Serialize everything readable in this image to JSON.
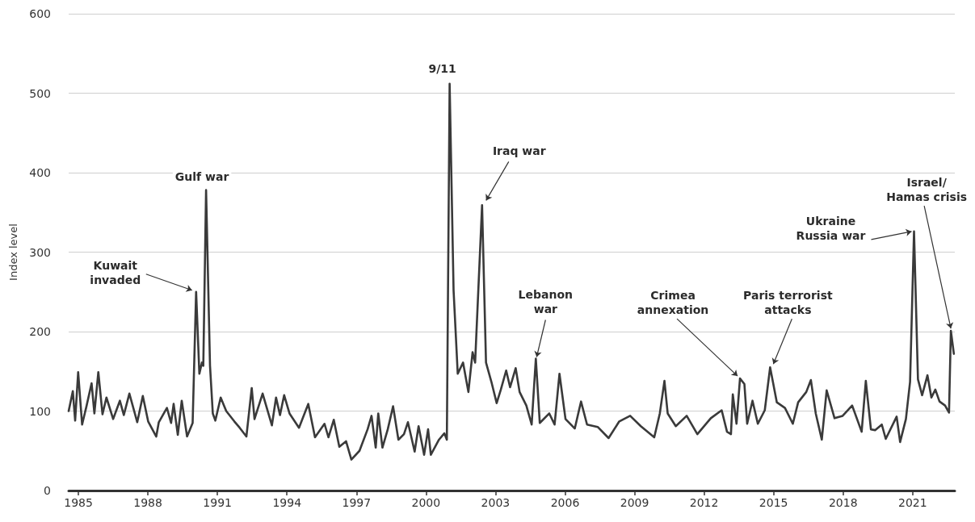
{
  "chart_data": {
    "type": "line",
    "ylabel": "Index level",
    "xlim": [
      1984.58,
      2022.82
    ],
    "xticks": [
      1985,
      1988,
      1991,
      1994,
      1997,
      2000,
      2003,
      2006,
      2009,
      2012,
      2015,
      2018,
      2021
    ],
    "ylim": [
      0,
      600
    ],
    "yticks": [
      0,
      100,
      200,
      300,
      400,
      500,
      600
    ],
    "grid": "y",
    "marker": "none",
    "line_style": "solid",
    "x": [
      1984.58,
      1984.76,
      1984.86,
      1984.99,
      1985.16,
      1985.34,
      1985.57,
      1985.69,
      1985.86,
      1986.04,
      1986.21,
      1986.5,
      1986.79,
      1986.96,
      1987.2,
      1987.54,
      1987.78,
      1988.01,
      1988.36,
      1988.47,
      1988.82,
      1989.0,
      1989.11,
      1989.29,
      1989.46,
      1989.69,
      1989.93,
      1990.08,
      1990.22,
      1990.33,
      1990.39,
      1990.51,
      1990.68,
      1990.8,
      1990.91,
      1991.14,
      1991.38,
      1991.73,
      1991.96,
      1992.25,
      1992.48,
      1992.6,
      1992.95,
      1993.35,
      1993.53,
      1993.7,
      1993.88,
      1994.11,
      1994.52,
      1994.92,
      1995.21,
      1995.62,
      1995.79,
      1996.02,
      1996.26,
      1996.55,
      1996.78,
      1997.13,
      1997.48,
      1997.65,
      1997.83,
      1997.94,
      1998.12,
      1998.35,
      1998.58,
      1998.81,
      1999.05,
      1999.22,
      1999.51,
      1999.68,
      1999.92,
      2000.09,
      2000.21,
      2000.56,
      2000.79,
      2000.9,
      2001.02,
      2001.19,
      2001.37,
      2001.6,
      2001.83,
      2002.01,
      2002.12,
      2002.42,
      2002.59,
      2002.82,
      2003.05,
      2003.23,
      2003.46,
      2003.63,
      2003.87,
      2004.04,
      2004.33,
      2004.56,
      2004.74,
      2004.91,
      2005.32,
      2005.55,
      2005.76,
      2006.02,
      2006.42,
      2006.69,
      2006.95,
      2007.41,
      2007.88,
      2008.34,
      2008.81,
      2009.27,
      2009.85,
      2010.09,
      2010.29,
      2010.43,
      2010.78,
      2011.25,
      2011.71,
      2012.29,
      2012.76,
      2012.99,
      2013.16,
      2013.24,
      2013.4,
      2013.55,
      2013.74,
      2013.86,
      2014.09,
      2014.32,
      2014.62,
      2014.85,
      2015.14,
      2015.49,
      2015.83,
      2016.06,
      2016.41,
      2016.61,
      2016.82,
      2017.08,
      2017.29,
      2017.63,
      2017.98,
      2018.39,
      2018.8,
      2018.98,
      2019.2,
      2019.38,
      2019.67,
      2019.84,
      2020.31,
      2020.46,
      2020.71,
      2020.89,
      2021.06,
      2021.23,
      2021.41,
      2021.64,
      2021.81,
      2021.98,
      2022.16,
      2022.4,
      2022.57,
      2022.65,
      2022.78
    ],
    "series": [
      {
        "color": "#3a3a3a",
        "values": [
          100,
          125,
          88,
          149,
          83,
          105,
          135,
          97,
          149,
          96,
          117,
          90,
          113,
          95,
          122,
          86,
          119,
          87,
          68,
          86,
          104,
          85,
          109,
          70,
          113,
          68,
          85,
          250,
          147,
          161,
          157,
          378,
          157,
          97,
          88,
          117,
          100,
          87,
          79,
          68,
          129,
          90,
          122,
          82,
          117,
          95,
          120,
          97,
          79,
          109,
          67,
          84,
          67,
          89,
          55,
          62,
          39,
          50,
          77,
          94,
          54,
          97,
          54,
          77,
          106,
          64,
          71,
          86,
          49,
          81,
          45,
          77,
          45,
          64,
          72,
          64,
          512,
          252,
          147,
          161,
          124,
          174,
          161,
          359,
          161,
          137,
          110,
          127,
          151,
          130,
          154,
          124,
          107,
          83,
          166,
          85,
          97,
          83,
          147,
          90,
          78,
          112,
          83,
          80,
          66,
          87,
          94,
          81,
          67,
          97,
          138,
          97,
          81,
          94,
          71,
          91,
          101,
          74,
          71,
          121,
          84,
          141,
          134,
          84,
          113,
          84,
          101,
          155,
          111,
          104,
          84,
          111,
          124,
          139,
          97,
          64,
          126,
          91,
          94,
          107,
          74,
          138,
          77,
          76,
          83,
          65,
          93,
          61,
          90,
          137,
          326,
          140,
          120,
          145,
          117,
          127,
          112,
          107,
          98,
          201,
          172
        ]
      }
    ],
    "annotations": [
      {
        "text": "9/11",
        "x": 2001.02,
        "y": 512
      },
      {
        "text": "Gulf war",
        "x": 1990.51,
        "y": 378
      },
      {
        "text": "Kuwait\ninvaded",
        "x": 1990.08,
        "y": 250
      },
      {
        "text": "Iraq war",
        "x": 2002.42,
        "y": 359
      },
      {
        "text": "Lebanon\nwar",
        "x": 2004.74,
        "y": 166
      },
      {
        "text": "Crimea\nannexation",
        "x": 2013.55,
        "y": 141
      },
      {
        "text": "Paris terrorist\nattacks",
        "x": 2014.85,
        "y": 155
      },
      {
        "text": "Ukraine\nRussia war",
        "x": 2021.06,
        "y": 326
      },
      {
        "text": "Israel/\nHamas crisis",
        "x": 2022.65,
        "y": 201
      }
    ]
  }
}
